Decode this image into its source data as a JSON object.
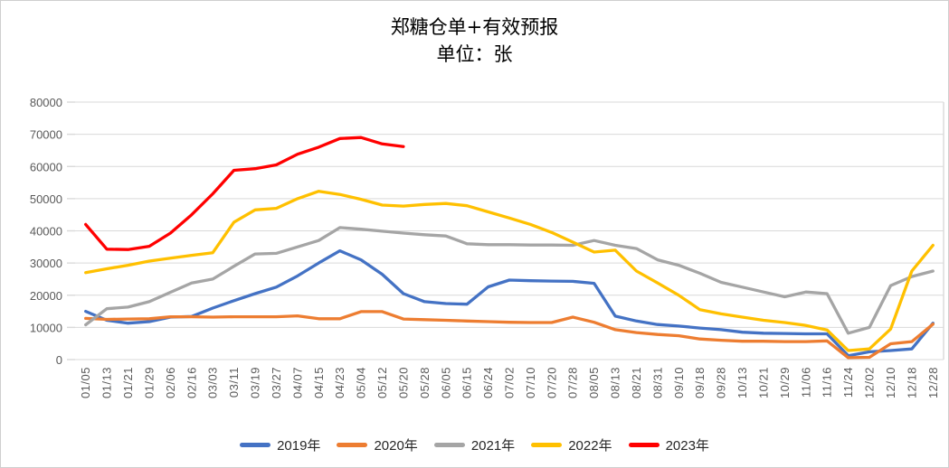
{
  "chart_data": {
    "type": "line",
    "title": "郑糖仓单+有效预报",
    "subtitle": "单位：张",
    "xlabel": "",
    "ylabel": "",
    "ylim": [
      0,
      80000
    ],
    "ytick_step": 10000,
    "y_tick_labels": [
      "0",
      "10000",
      "20000",
      "30000",
      "40000",
      "50000",
      "60000",
      "70000",
      "80000"
    ],
    "grid": true,
    "legend_position": "bottom",
    "categories": [
      "01/05",
      "01/13",
      "01/21",
      "01/29",
      "02/06",
      "02/16",
      "03/03",
      "03/11",
      "03/19",
      "03/27",
      "04/07",
      "04/15",
      "04/23",
      "05/04",
      "05/12",
      "05/20",
      "05/28",
      "06/05",
      "06/15",
      "06/24",
      "07/02",
      "07/10",
      "07/20",
      "07/28",
      "08/05",
      "08/13",
      "08/21",
      "08/31",
      "09/10",
      "09/18",
      "09/28",
      "10/13",
      "10/21",
      "10/29",
      "11/06",
      "11/16",
      "11/24",
      "12/02",
      "12/10",
      "12/18",
      "12/28"
    ],
    "series": [
      {
        "name": "2019年",
        "color": "#4472C4",
        "values": [
          15000,
          12200,
          11300,
          11800,
          13200,
          13400,
          16000,
          18300,
          20500,
          22500,
          26000,
          30000,
          33800,
          31000,
          26500,
          20500,
          18000,
          17400,
          17200,
          22600,
          24700,
          24500,
          24400,
          24300,
          23700,
          13500,
          12000,
          10900,
          10400,
          9800,
          9300,
          8500,
          8200,
          8100,
          8000,
          8000,
          1200,
          2400,
          2800,
          3300,
          11300
        ]
      },
      {
        "name": "2020年",
        "color": "#ED7D31",
        "values": [
          12800,
          12500,
          12600,
          12700,
          13300,
          13300,
          13200,
          13300,
          13300,
          13300,
          13600,
          12700,
          12700,
          14900,
          14900,
          12600,
          12400,
          12200,
          12000,
          11800,
          11600,
          11500,
          11500,
          13200,
          11600,
          9300,
          8400,
          7800,
          7400,
          6400,
          6000,
          5700,
          5700,
          5600,
          5600,
          5800,
          600,
          700,
          4900,
          5600,
          11000
        ]
      },
      {
        "name": "2021年",
        "color": "#A5A5A5",
        "values": [
          10800,
          15800,
          16300,
          18000,
          20900,
          23800,
          25000,
          29000,
          32800,
          33000,
          35000,
          37000,
          41000,
          40500,
          39900,
          39300,
          38800,
          38400,
          36000,
          35700,
          35700,
          35600,
          35600,
          35500,
          37000,
          35500,
          34500,
          31000,
          29300,
          26800,
          24000,
          22500,
          21000,
          19500,
          21000,
          20500,
          8200,
          10000,
          23000,
          25800,
          27500
        ]
      },
      {
        "name": "2022年",
        "color": "#FFC000",
        "values": [
          27000,
          28200,
          29300,
          30600,
          31500,
          32400,
          33200,
          42700,
          46500,
          47000,
          50000,
          52300,
          51300,
          49800,
          48000,
          47700,
          48200,
          48500,
          47800,
          45900,
          44000,
          42000,
          39500,
          36500,
          33400,
          34000,
          27500,
          23800,
          20000,
          15500,
          14200,
          13200,
          12200,
          11500,
          10600,
          9200,
          2800,
          3300,
          9500,
          27500,
          35500
        ]
      },
      {
        "name": "2023年",
        "color": "#FF0000",
        "values": [
          42000,
          34300,
          34200,
          35200,
          39300,
          45000,
          51500,
          58800,
          59300,
          60500,
          63800,
          66000,
          68700,
          69000,
          67000,
          66200,
          null,
          null,
          null,
          null,
          null,
          null,
          null,
          null,
          null,
          null,
          null,
          null,
          null,
          null,
          null,
          null,
          null,
          null,
          null,
          null,
          null,
          null,
          null,
          null,
          null
        ]
      }
    ]
  },
  "colors": {
    "gridline": "#D9D9D9",
    "plot_border": "#D9D9D9",
    "axis_label": "#595959",
    "legend_text": "#262626"
  }
}
